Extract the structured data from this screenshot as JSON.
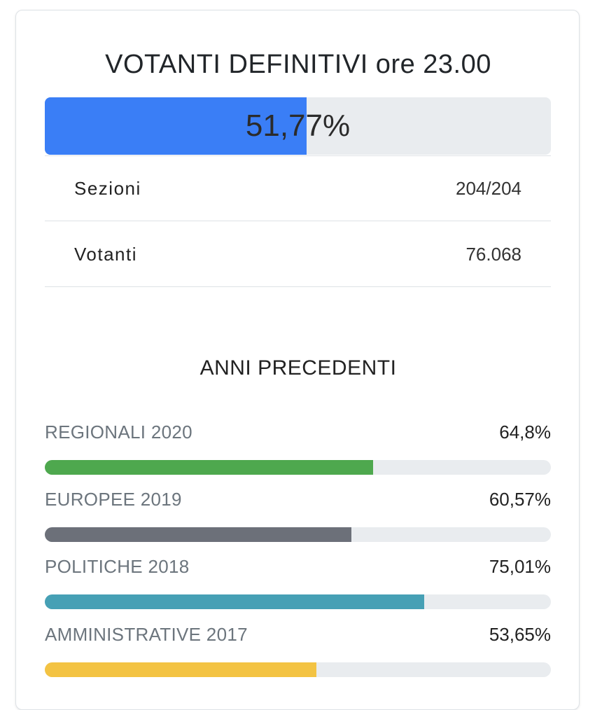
{
  "title": "VOTANTI DEFINITIVI ore 23.00",
  "turnout": {
    "label": "51,77%",
    "fraction": 0.5177,
    "color": "#3a7ef6"
  },
  "stats": [
    {
      "label": "Sezioni",
      "value": "204/204"
    },
    {
      "label": "Votanti",
      "value": "76.068"
    }
  ],
  "previous": {
    "title": "ANNI PRECEDENTI",
    "items": [
      {
        "name": "REGIONALI 2020",
        "value": "64,8%",
        "fraction": 0.648,
        "color": "#4ea84e"
      },
      {
        "name": "EUROPEE 2019",
        "value": "60,57%",
        "fraction": 0.6057,
        "color": "#6c7079"
      },
      {
        "name": "POLITICHE 2018",
        "value": "75,01%",
        "fraction": 0.7501,
        "color": "#46a0b5"
      },
      {
        "name": "AMMINISTRATIVE 2017",
        "value": "53,65%",
        "fraction": 0.5365,
        "color": "#f3c343"
      }
    ]
  }
}
